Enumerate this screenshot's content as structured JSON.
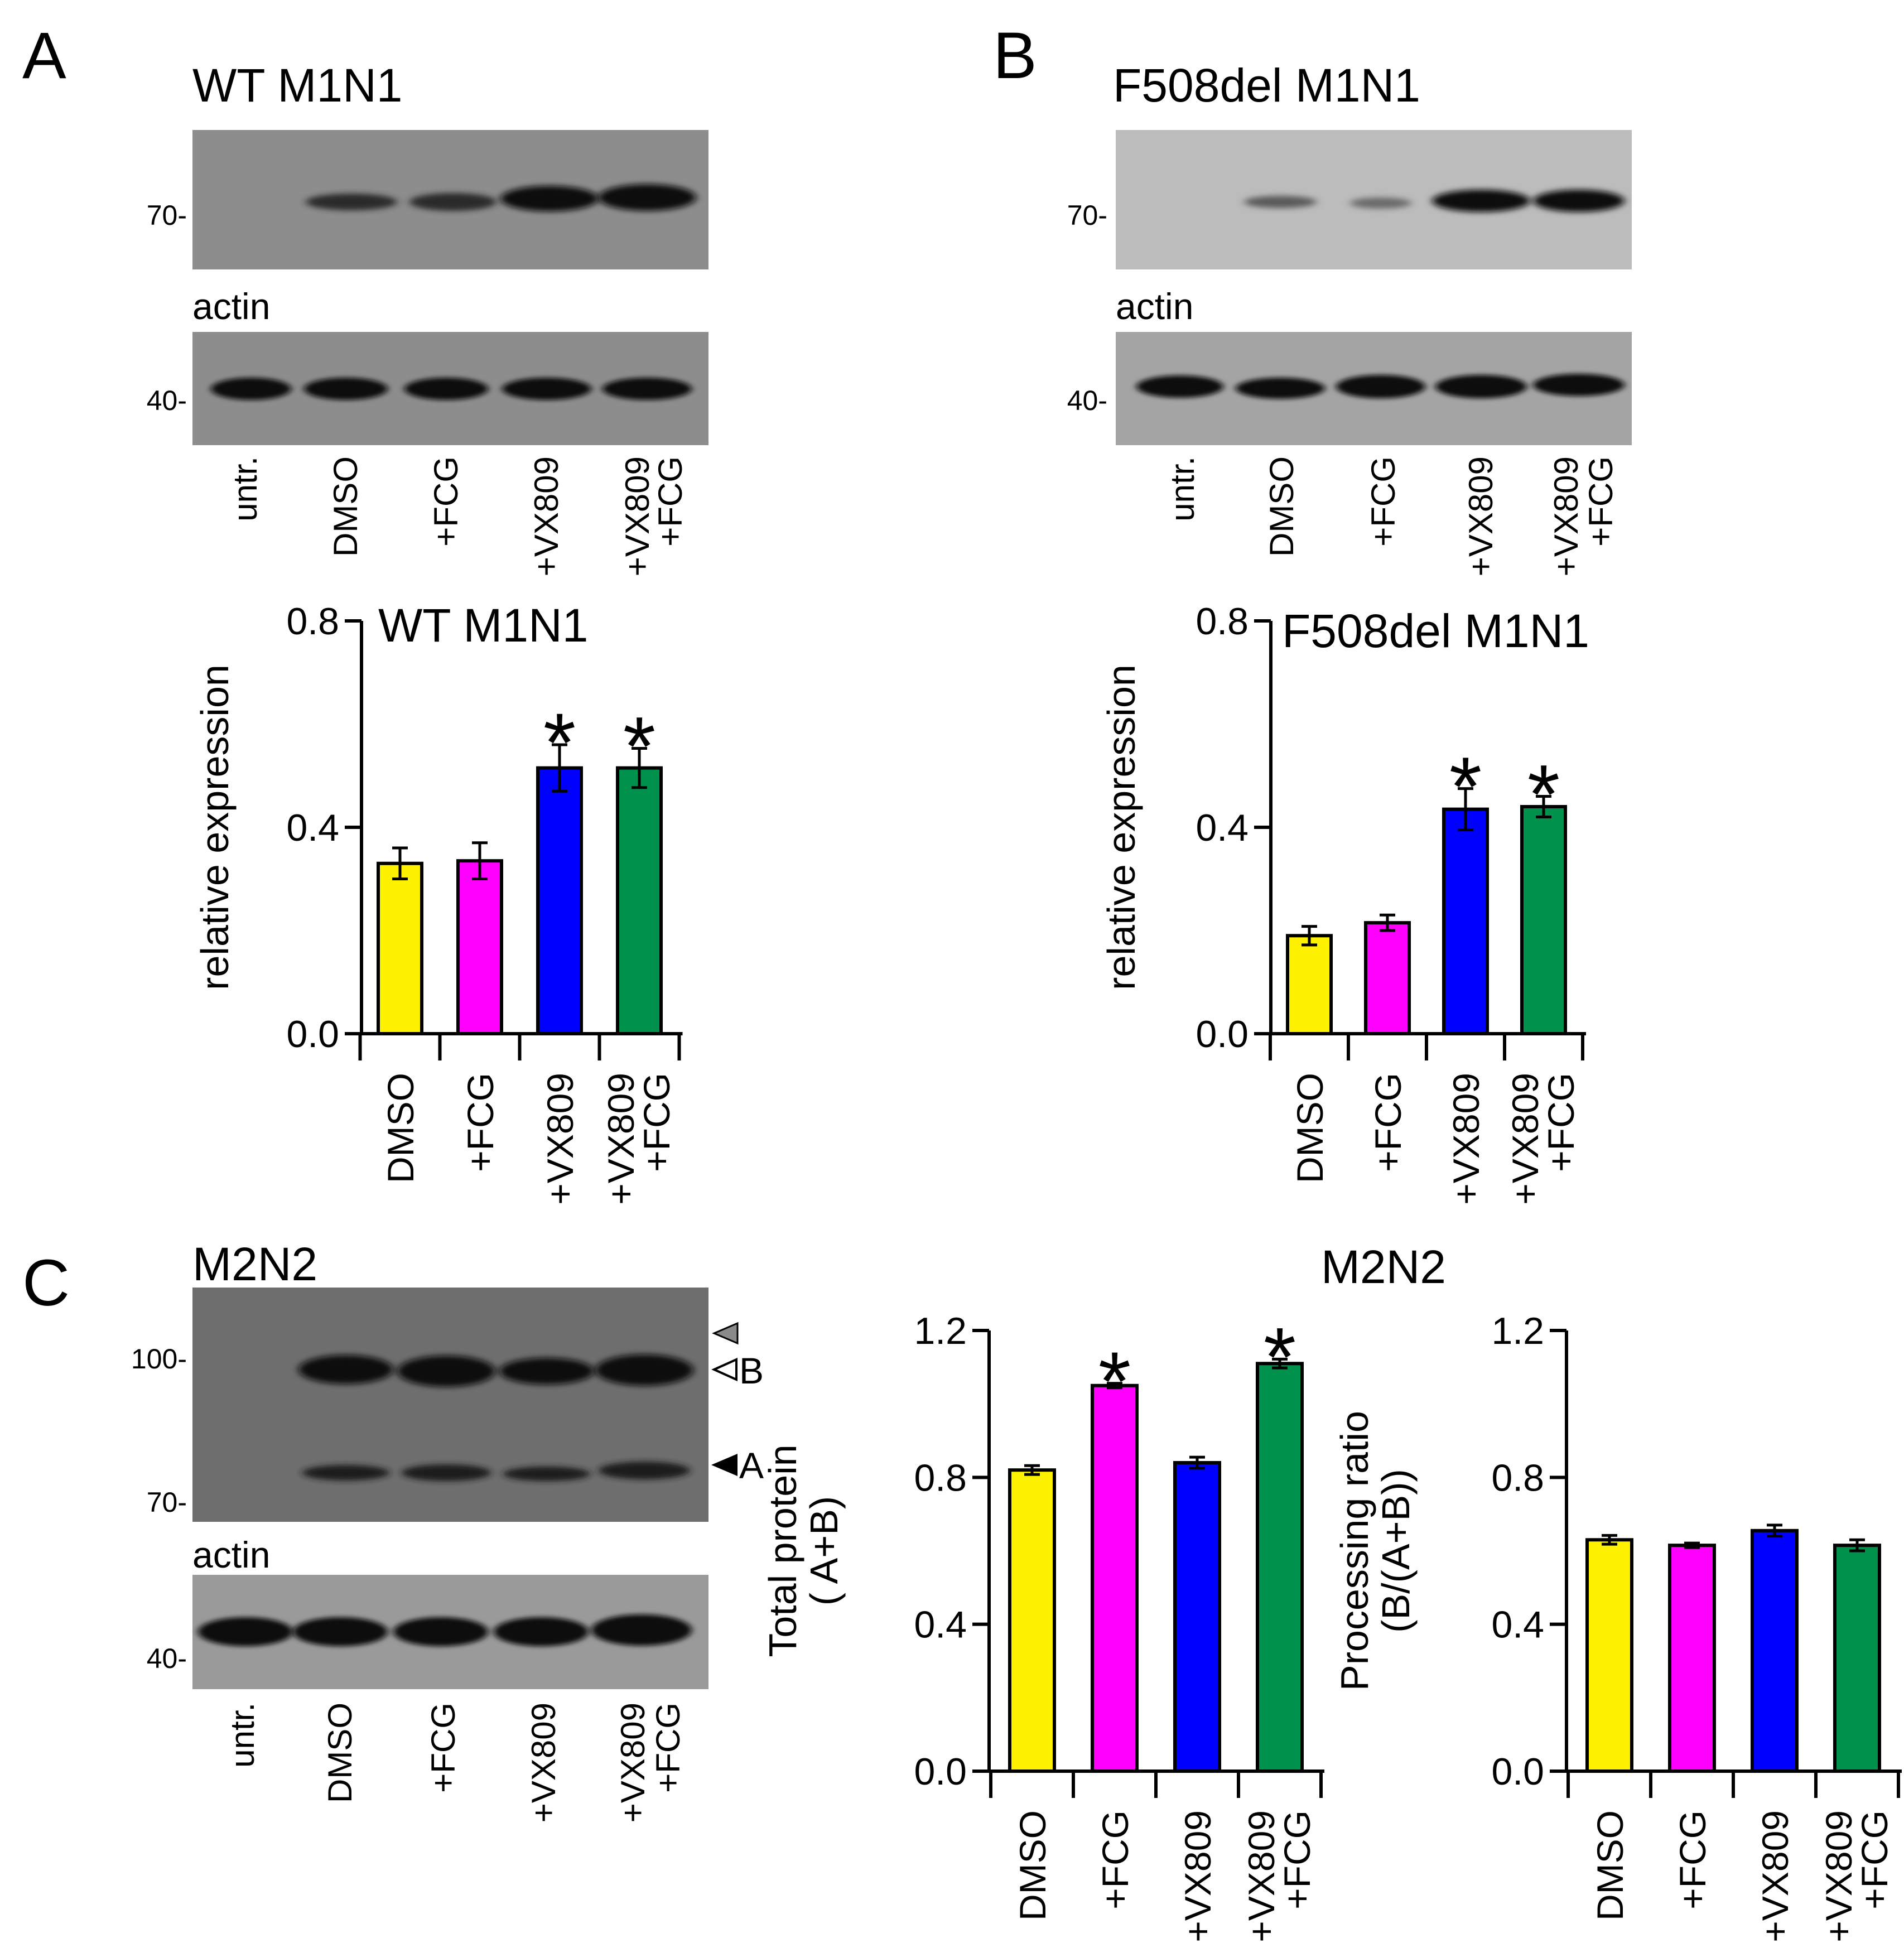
{
  "panels": {
    "a": {
      "letter": "A",
      "blot_title": "WT M1N1",
      "mw_top": "70-",
      "loading_label": "actin",
      "mw_bottom": "40-",
      "lanes": [
        "untr.",
        "DMSO",
        "+FCG",
        "+VX809",
        "+VX809",
        "+FCG"
      ]
    },
    "b": {
      "letter": "B",
      "blot_title": "F508del M1N1",
      "mw_top": "70-",
      "loading_label": "actin",
      "mw_bottom": "40-",
      "lanes": [
        "untr.",
        "DMSO",
        "+FCG",
        "+VX809",
        "+VX809",
        "+FCG"
      ]
    },
    "c": {
      "letter": "C",
      "blot_title": "M2N2",
      "mw_top": "100-",
      "mw_mid": "70-",
      "loading_label": "actin",
      "mw_bottom": "40-",
      "band_b": "B",
      "band_a": "A",
      "lanes": [
        "untr.",
        "DMSO",
        "+FCG",
        "+VX809",
        "+VX809",
        "+FCG"
      ],
      "charts_title": "M2N2"
    }
  },
  "colors": {
    "dmso": "#FFF200",
    "fcg": "#FF00FF",
    "vx809": "#0000FF",
    "combo": "#00914C"
  },
  "chart_data": [
    {
      "id": "a",
      "type": "bar",
      "title": "WT M1N1",
      "xlabel": "",
      "ylabel": "relative expression",
      "categories": [
        "DMSO",
        "+FCG",
        "+VX809",
        "+VX809\n+FCG"
      ],
      "values": [
        0.33,
        0.335,
        0.515,
        0.515
      ],
      "errors": [
        0.03,
        0.035,
        0.045,
        0.038
      ],
      "significance": [
        "",
        "",
        "*",
        "*"
      ],
      "ylim": [
        0,
        0.8
      ],
      "yticks": [
        "0.0",
        "0.4",
        "0.8"
      ],
      "colors": [
        "#FFF200",
        "#FF00FF",
        "#0000FF",
        "#00914C"
      ]
    },
    {
      "id": "b",
      "type": "bar",
      "title": "F508del M1N1",
      "xlabel": "",
      "ylabel": "relative expression",
      "categories": [
        "DMSO",
        "+FCG",
        "+VX809",
        "+VX809\n+FCG"
      ],
      "values": [
        0.19,
        0.215,
        0.435,
        0.44
      ],
      "errors": [
        0.018,
        0.015,
        0.04,
        0.02
      ],
      "significance": [
        "",
        "",
        "*",
        "*"
      ],
      "ylim": [
        0,
        0.8
      ],
      "yticks": [
        "0.0",
        "0.4",
        "0.8"
      ],
      "colors": [
        "#FFF200",
        "#FF00FF",
        "#0000FF",
        "#00914C"
      ]
    },
    {
      "id": "c1",
      "type": "bar",
      "title": "",
      "xlabel": "",
      "ylabel": "Total protein\n( A+B)",
      "categories": [
        "DMSO",
        "+FCG",
        "+VX809",
        "+VX809\n+FCG"
      ],
      "values": [
        0.82,
        1.05,
        0.84,
        1.11
      ],
      "errors": [
        0.012,
        0.006,
        0.015,
        0.012
      ],
      "significance": [
        "",
        "*",
        "",
        "*"
      ],
      "ylim": [
        0,
        1.2
      ],
      "yticks": [
        "0.0",
        "0.4",
        "0.8",
        "1.2"
      ],
      "colors": [
        "#FFF200",
        "#FF00FF",
        "#0000FF",
        "#00914C"
      ]
    },
    {
      "id": "c2",
      "type": "bar",
      "title": "",
      "xlabel": "",
      "ylabel": "Processing ratio\n(B/(A+B))",
      "categories": [
        "DMSO",
        "+FCG",
        "+VX809",
        "+VX809\n+FCG"
      ],
      "values": [
        0.63,
        0.615,
        0.655,
        0.615
      ],
      "errors": [
        0.012,
        0.006,
        0.015,
        0.015
      ],
      "significance": [
        "",
        "",
        "",
        ""
      ],
      "ylim": [
        0,
        1.2
      ],
      "yticks": [
        "0.0",
        "0.4",
        "0.8",
        "1.2"
      ],
      "colors": [
        "#FFF200",
        "#FF00FF",
        "#0000FF",
        "#00914C"
      ]
    }
  ]
}
